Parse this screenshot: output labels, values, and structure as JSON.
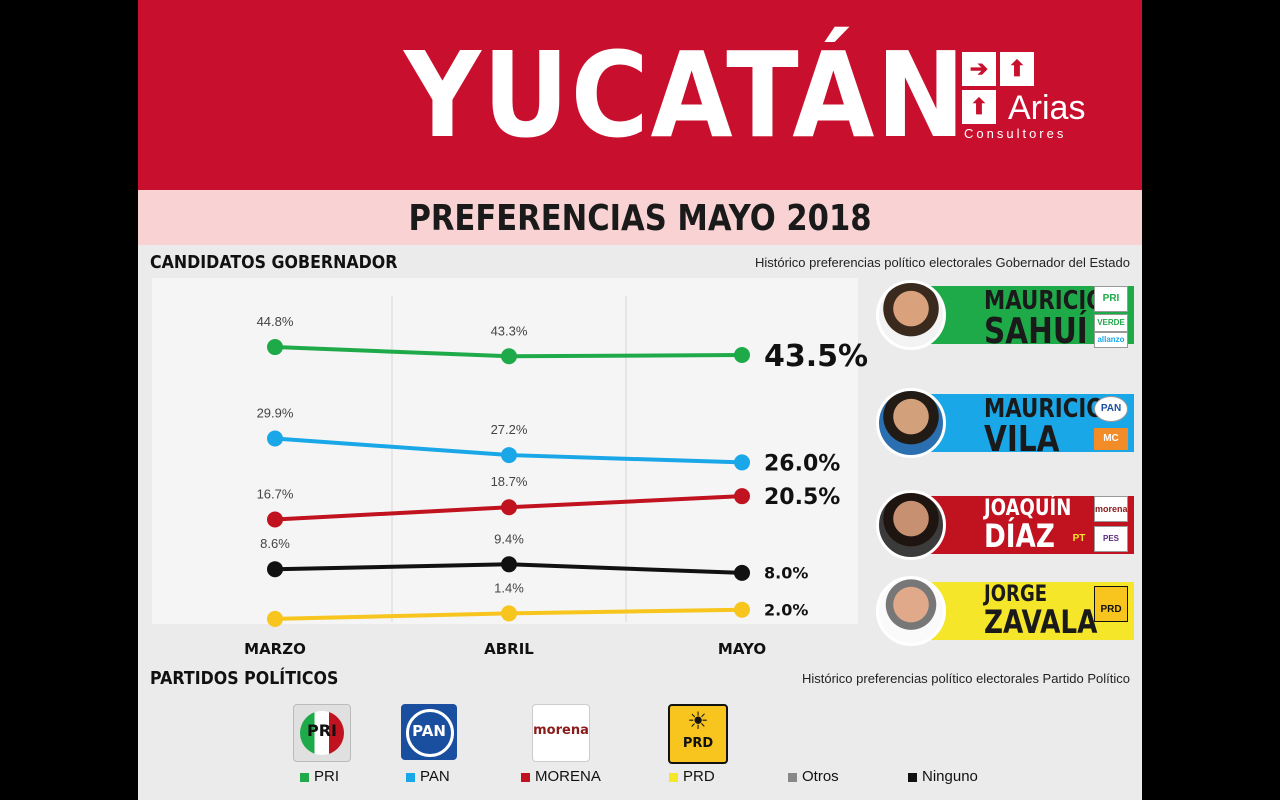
{
  "header": {
    "title": "YUCATÁN",
    "logo_name": "Arias",
    "logo_sub": "Consultores"
  },
  "subtitle": "PREFERENCIAS MAYO 2018",
  "section1": {
    "left": "CANDIDATOS GOBERNADOR",
    "right": "Histórico preferencias político electorales Gobernador del Estado"
  },
  "section2": {
    "left": "PARTIDOS POLÍTICOS",
    "right": "Histórico preferencias político electorales Partido Político"
  },
  "chart_data": {
    "type": "line",
    "title": "PREFERENCIAS MAYO 2018",
    "categories": [
      "MARZO",
      "ABRIL",
      "MAYO"
    ],
    "ylim": [
      0,
      50
    ],
    "series": [
      {
        "name": "PRI",
        "color": "#1faa4a",
        "values": [
          44.8,
          43.3,
          43.5
        ],
        "labels": [
          "44.8%",
          "43.3%",
          "43.5%"
        ]
      },
      {
        "name": "PAN",
        "color": "#1aa7e8",
        "values": [
          29.9,
          27.2,
          26.0
        ],
        "labels": [
          "29.9%",
          "27.2%",
          "26.0%"
        ]
      },
      {
        "name": "MORENA",
        "color": "#c0121f",
        "values": [
          16.7,
          18.7,
          20.5
        ],
        "labels": [
          "16.7%",
          "18.7%",
          "20.5%"
        ]
      },
      {
        "name": "Ninguno",
        "color": "#111111",
        "values": [
          8.6,
          9.4,
          8.0
        ],
        "labels": [
          "8.6%",
          "9.4%",
          "8.0%"
        ]
      },
      {
        "name": "PRD",
        "color": "#f7c51e",
        "values": [
          0.5,
          1.4,
          2.0
        ],
        "labels": [
          "",
          "1.4%",
          "2.0%"
        ]
      }
    ]
  },
  "candidates": [
    {
      "first": "MAURICIO",
      "last": "SAHUÍ",
      "color": "#1faa4a",
      "badges": [
        "PRI",
        "VERDE",
        "allanzo"
      ]
    },
    {
      "first": "MAURICIO",
      "last": "VILA",
      "color": "#1aa7e8",
      "badges": [
        "PAN",
        "MC"
      ]
    },
    {
      "first": "JOAQUÍN",
      "last": "DÍAZ",
      "color": "#c0121f",
      "badges": [
        "morena",
        "PT",
        "PES"
      ]
    },
    {
      "first": "JORGE",
      "last": "ZAVALA",
      "color": "#f5e62a",
      "badges": [
        "PRD"
      ]
    }
  ],
  "parties": {
    "logos": [
      "PRI",
      "PAN",
      "morena",
      "PRD"
    ],
    "legend": [
      {
        "label": "PRI",
        "color": "#1faa4a"
      },
      {
        "label": "PAN",
        "color": "#1aa7e8"
      },
      {
        "label": "MORENA",
        "color": "#c0121f"
      },
      {
        "label": "PRD",
        "color": "#f5e62a"
      },
      {
        "label": "Otros",
        "color": "#888888"
      },
      {
        "label": "Ninguno",
        "color": "#111111"
      }
    ]
  }
}
